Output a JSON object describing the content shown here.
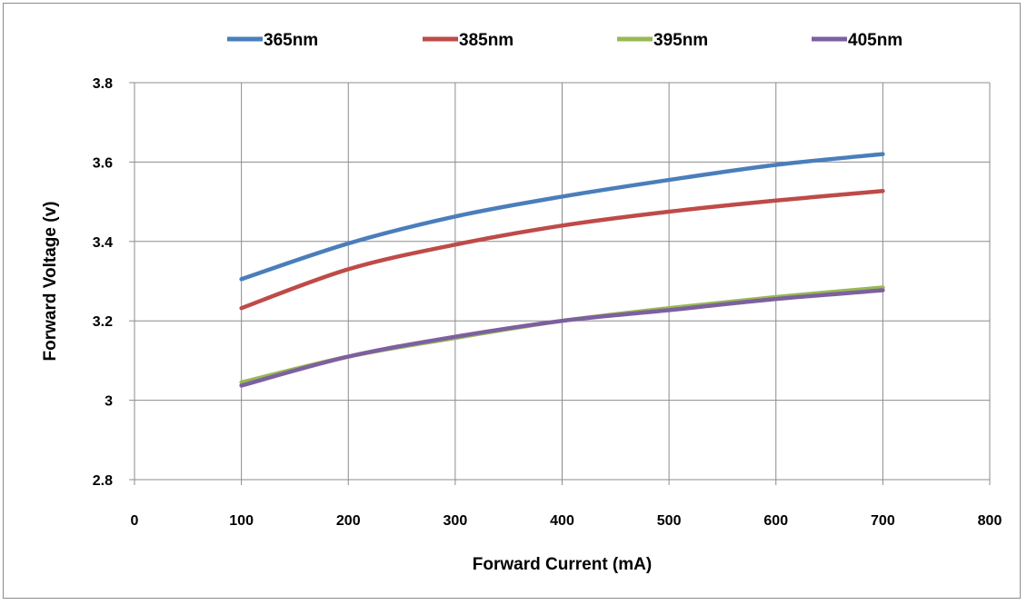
{
  "chart_data": {
    "type": "line",
    "title": "",
    "xlabel": "Forward Current (mA)",
    "ylabel": "Forward Voltage (v)",
    "xlim": [
      0,
      800
    ],
    "ylim": [
      2.8,
      3.8
    ],
    "x_ticks": [
      0,
      100,
      200,
      300,
      400,
      500,
      600,
      700,
      800
    ],
    "y_ticks": [
      2.8,
      3,
      3.2,
      3.4,
      3.6,
      3.8
    ],
    "x_tick_labels": [
      "0",
      "100",
      "200",
      "300",
      "400",
      "500",
      "600",
      "700",
      "800"
    ],
    "y_tick_labels": [
      "2.8",
      "3",
      "3.2",
      "3.4",
      "3.6",
      "3.8"
    ],
    "grid": true,
    "legend_position": "top",
    "x": [
      100,
      200,
      300,
      400,
      500,
      600,
      700
    ],
    "series": [
      {
        "name": "365nm",
        "color": "#4a7ebb",
        "values": [
          3.305,
          3.395,
          3.463,
          3.513,
          3.555,
          3.593,
          3.62
        ]
      },
      {
        "name": "385nm",
        "color": "#be4b48",
        "values": [
          3.232,
          3.33,
          3.392,
          3.44,
          3.475,
          3.503,
          3.527
        ]
      },
      {
        "name": "395nm",
        "color": "#98b954",
        "values": [
          3.045,
          3.11,
          3.157,
          3.2,
          3.232,
          3.26,
          3.284
        ]
      },
      {
        "name": "405nm",
        "color": "#7d60a0",
        "values": [
          3.037,
          3.11,
          3.16,
          3.2,
          3.227,
          3.255,
          3.277
        ]
      }
    ]
  }
}
